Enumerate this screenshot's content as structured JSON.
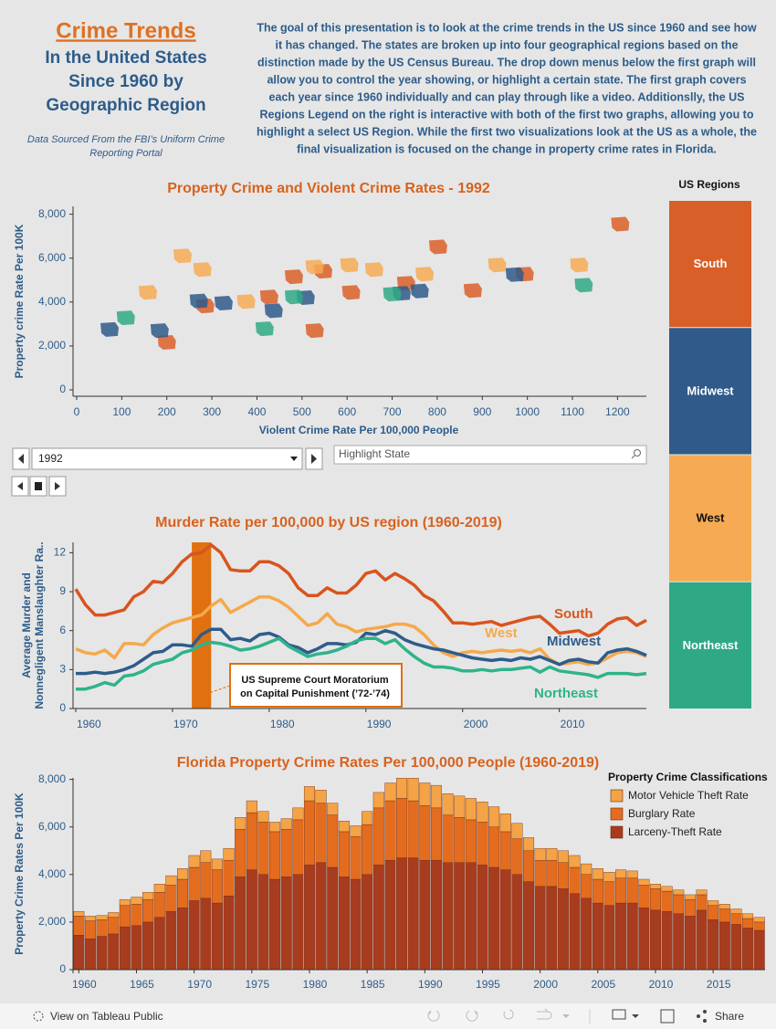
{
  "header": {
    "title": "Crime Trends",
    "subtitle": [
      "In the United States",
      "Since 1960 by",
      "Geographic Region"
    ],
    "source": [
      "Data Sourced From the FBI’s Uniform Crime",
      "Reporting Portal"
    ],
    "description": [
      "The goal of this presentation is to look at the crime trends in the US since 1960 and see how",
      "it has changed. The states are broken up into four geographical regions based on the",
      "distinction made by the US Census Bureau. The drop down menus below the first graph will",
      "allow you to control the year showing, or highlight a certain state. The first graph covers",
      "each year since 1960 individually and can play through like a video. Additionslly, the US",
      "Regions Legend on the right is interactive with both of the first two graphs, allowing you to",
      "highlight a select US Region. While the first two visualizations look at the US as a whole, the",
      "final visualization is focused on the change in property crime rates in Florida."
    ]
  },
  "controls": {
    "year": "1992",
    "search_placeholder": "Highlight State"
  },
  "footer": {
    "view": "View on Tableau Public",
    "share": "Share"
  },
  "chart_data": [
    {
      "type": "scatter",
      "title": "Property Crime and Violent Crime Rates -  1992",
      "x_label": "Violent Crime Rate Per 100,000 People",
      "y_label": "Property crime Rate Per 100K",
      "legend_title": "US Regions",
      "legend": "right",
      "series": [
        {
          "name": "South",
          "color": "#d95f28",
          "x": [
            1206,
            994,
            879,
            802,
            731,
            609,
            427,
            547,
            482,
            528,
            200,
            285
          ],
          "values": [
            7550,
            5270,
            4520,
            6515,
            4855,
            4440,
            4230,
            5400,
            5150,
            2700,
            2160,
            3820
          ]
        },
        {
          "name": "Midwest",
          "color": "#2f5a89",
          "x": [
            73,
            184,
            271,
            326,
            508,
            761,
            721,
            972,
            437
          ],
          "values": [
            2750,
            2700,
            4050,
            3950,
            4200,
            4500,
            4400,
            5250,
            3600
          ]
        },
        {
          "name": "West",
          "color": "#f6aa53",
          "x": [
            158,
            279,
            528,
            605,
            660,
            772,
            933,
            1115,
            235,
            376
          ],
          "values": [
            4440,
            5480,
            5600,
            5685,
            5480,
            5270,
            5685,
            5685,
            6100,
            4025
          ]
        },
        {
          "name": "Northeast",
          "color": "#2fa985",
          "x": [
            109,
            417,
            482,
            1125,
            700
          ],
          "values": [
            3280,
            2780,
            4230,
            4770,
            4360
          ]
        }
      ],
      "xlim": [
        0,
        1260
      ],
      "ylim": [
        0,
        8400
      ],
      "xticks": [
        0,
        100,
        200,
        300,
        400,
        500,
        600,
        700,
        800,
        900,
        1000,
        1100,
        1200
      ],
      "yticks": [
        0,
        {
          "value": 2000,
          "label": "2,000"
        },
        {
          "value": 4000,
          "label": "4,000"
        },
        {
          "value": 6000,
          "label": "6,000"
        },
        {
          "value": 8000,
          "label": "8,000"
        }
      ]
    },
    {
      "type": "line",
      "title": "Murder Rate per 100,000 by US region (1960-2019)",
      "y_label": [
        "Average Murder and",
        "Nonnegligent Manslaughter Ra.."
      ],
      "x": [
        1960,
        1961,
        1962,
        1963,
        1964,
        1965,
        1966,
        1967,
        1968,
        1969,
        1970,
        1971,
        1972,
        1973,
        1974,
        1975,
        1976,
        1977,
        1978,
        1979,
        1980,
        1981,
        1982,
        1983,
        1984,
        1985,
        1986,
        1987,
        1988,
        1989,
        1990,
        1991,
        1992,
        1993,
        1994,
        1995,
        1996,
        1997,
        1998,
        1999,
        2000,
        2001,
        2002,
        2003,
        2004,
        2005,
        2006,
        2007,
        2008,
        2009,
        2010,
        2011,
        2012,
        2013,
        2014,
        2015,
        2016,
        2017,
        2018,
        2019
      ],
      "series": [
        {
          "name": "South",
          "color": "#d9541e",
          "values": [
            9.2,
            8.0,
            7.2,
            7.2,
            7.4,
            7.6,
            8.6,
            9.0,
            9.8,
            9.7,
            10.4,
            11.3,
            11.9,
            12.0,
            12.6,
            12.0,
            10.7,
            10.6,
            10.6,
            11.3,
            11.3,
            11.0,
            10.4,
            9.3,
            8.7,
            8.7,
            9.3,
            8.9,
            8.9,
            9.5,
            10.4,
            10.6,
            9.9,
            10.4,
            10.0,
            9.5,
            8.7,
            8.3,
            7.5,
            6.6,
            6.6,
            6.5,
            6.6,
            6.7,
            6.4,
            6.6,
            6.8,
            7.0,
            7.1,
            6.5,
            5.8,
            5.9,
            6.0,
            5.6,
            5.8,
            6.5,
            6.9,
            7.0,
            6.4,
            6.8
          ]
        },
        {
          "name": "West",
          "color": "#f5a94b",
          "values": [
            4.6,
            4.3,
            4.2,
            4.5,
            3.9,
            5.0,
            5.0,
            4.9,
            5.7,
            6.2,
            6.6,
            6.8,
            7.0,
            7.2,
            7.9,
            8.4,
            7.4,
            7.8,
            8.2,
            8.6,
            8.6,
            8.3,
            7.8,
            7.1,
            6.4,
            6.6,
            7.3,
            6.5,
            6.3,
            5.9,
            6.1,
            6.2,
            6.3,
            6.5,
            6.5,
            6.3,
            5.7,
            4.9,
            4.3,
            4.0,
            4.3,
            4.4,
            4.3,
            4.4,
            4.5,
            4.4,
            4.5,
            4.3,
            4.6,
            3.8,
            3.4,
            3.5,
            3.6,
            3.4,
            3.5,
            3.9,
            4.3,
            4.4,
            4.3,
            4.0
          ]
        },
        {
          "name": "Midwest",
          "color": "#2e5c8b",
          "values": [
            2.7,
            2.7,
            2.8,
            2.7,
            2.8,
            3.0,
            3.3,
            3.8,
            4.3,
            4.4,
            4.9,
            4.9,
            4.8,
            5.7,
            6.1,
            6.1,
            5.3,
            5.4,
            5.2,
            5.7,
            5.8,
            5.5,
            4.9,
            4.7,
            4.3,
            4.6,
            5.0,
            5.0,
            4.9,
            5.1,
            5.8,
            5.7,
            6.0,
            5.8,
            5.3,
            5.0,
            4.8,
            4.6,
            4.5,
            4.3,
            4.1,
            3.9,
            3.8,
            3.7,
            3.8,
            3.7,
            3.9,
            3.8,
            4.0,
            3.7,
            3.4,
            3.7,
            3.8,
            3.6,
            3.5,
            4.3,
            4.5,
            4.6,
            4.4,
            4.1
          ]
        },
        {
          "name": "Northeast",
          "color": "#2fb38b",
          "values": [
            1.5,
            1.5,
            1.7,
            2.0,
            1.8,
            2.5,
            2.6,
            2.9,
            3.4,
            3.6,
            3.8,
            4.3,
            4.5,
            4.9,
            5.1,
            5.0,
            4.8,
            4.5,
            4.6,
            4.8,
            5.1,
            5.4,
            4.8,
            4.4,
            4.0,
            4.2,
            4.3,
            4.5,
            4.8,
            5.2,
            5.4,
            5.4,
            5.0,
            5.3,
            4.6,
            4.0,
            3.5,
            3.2,
            3.2,
            3.1,
            2.9,
            2.9,
            3.0,
            2.9,
            3.0,
            3.0,
            3.1,
            3.2,
            2.8,
            3.2,
            2.9,
            2.8,
            2.7,
            2.6,
            2.4,
            2.7,
            2.7,
            2.7,
            2.6,
            2.7
          ]
        }
      ],
      "xlim": [
        1960,
        2019
      ],
      "ylim": [
        0,
        12.8
      ],
      "xticks": [
        1960,
        1970,
        1980,
        1990,
        2000,
        2010
      ],
      "yticks": [
        0,
        3,
        6,
        9,
        12
      ],
      "highlight": {
        "from": 1972,
        "to": 1974,
        "color": "#e07010"
      },
      "annotation": [
        "US Supreme Court Moratorium",
        "on Capital Punishment (’72-’74)"
      ]
    },
    {
      "type": "bar",
      "stacked": true,
      "title": "Florida Property Crime Rates Per 100,000 People (1960-2019)",
      "y_label": "Property Crime Rates Per 100K",
      "legend_title": "Property Crime Classifications",
      "x": [
        1960,
        1961,
        1962,
        1963,
        1964,
        1965,
        1966,
        1967,
        1968,
        1969,
        1970,
        1971,
        1972,
        1973,
        1974,
        1975,
        1976,
        1977,
        1978,
        1979,
        1980,
        1981,
        1982,
        1983,
        1984,
        1985,
        1986,
        1987,
        1988,
        1989,
        1990,
        1991,
        1992,
        1993,
        1994,
        1995,
        1996,
        1997,
        1998,
        1999,
        2000,
        2001,
        2002,
        2003,
        2004,
        2005,
        2006,
        2007,
        2008,
        2009,
        2010,
        2011,
        2012,
        2013,
        2014,
        2015,
        2016,
        2017,
        2018,
        2019
      ],
      "series": [
        {
          "name": "Larceny-Theft Rate",
          "color": "#a83c1e",
          "values": [
            1450,
            1300,
            1400,
            1500,
            1800,
            1850,
            2000,
            2200,
            2450,
            2600,
            2900,
            3000,
            2800,
            3100,
            3900,
            4200,
            4000,
            3800,
            3900,
            4000,
            4400,
            4500,
            4300,
            3900,
            3800,
            4000,
            4400,
            4600,
            4700,
            4700,
            4600,
            4600,
            4500,
            4500,
            4500,
            4400,
            4300,
            4200,
            4000,
            3700,
            3500,
            3500,
            3400,
            3200,
            3000,
            2800,
            2700,
            2800,
            2800,
            2600,
            2500,
            2450,
            2350,
            2250,
            2500,
            2100,
            2000,
            1900,
            1750,
            1650
          ]
        },
        {
          "name": "Burglary Rate",
          "color": "#e46c1e",
          "values": [
            800,
            750,
            700,
            700,
            900,
            900,
            950,
            1050,
            1100,
            1200,
            1400,
            1500,
            1400,
            1500,
            2000,
            2400,
            2200,
            2000,
            2000,
            2300,
            2700,
            2500,
            2200,
            1900,
            1800,
            2100,
            2400,
            2500,
            2500,
            2400,
            2300,
            2200,
            2000,
            1900,
            1800,
            1800,
            1700,
            1600,
            1500,
            1300,
            1100,
            1100,
            1100,
            1100,
            1000,
            1000,
            1000,
            1050,
            1050,
            950,
            900,
            850,
            800,
            700,
            650,
            600,
            550,
            450,
            400,
            350
          ]
        },
        {
          "name": "Motor Vehicle Theft Rate",
          "color": "#f5a347",
          "values": [
            200,
            200,
            180,
            200,
            250,
            300,
            300,
            350,
            400,
            450,
            500,
            500,
            450,
            500,
            500,
            500,
            450,
            400,
            450,
            500,
            600,
            550,
            500,
            450,
            450,
            550,
            650,
            750,
            850,
            950,
            950,
            950,
            900,
            900,
            900,
            850,
            850,
            750,
            650,
            550,
            500,
            500,
            500,
            500,
            450,
            450,
            400,
            350,
            300,
            250,
            200,
            200,
            200,
            200,
            200,
            200,
            200,
            200,
            200,
            200
          ]
        }
      ],
      "xlim": [
        1960,
        2019
      ],
      "ylim": [
        0,
        8100
      ],
      "xticks": [
        1960,
        1965,
        1970,
        1975,
        1980,
        1985,
        1990,
        1995,
        2000,
        2005,
        2010,
        2015
      ],
      "yticks": [
        0,
        {
          "value": 2000,
          "label": "2,000"
        },
        {
          "value": 4000,
          "label": "4,000"
        },
        {
          "value": 6000,
          "label": "6,000"
        },
        {
          "value": 8000,
          "label": "8,000"
        }
      ]
    }
  ]
}
